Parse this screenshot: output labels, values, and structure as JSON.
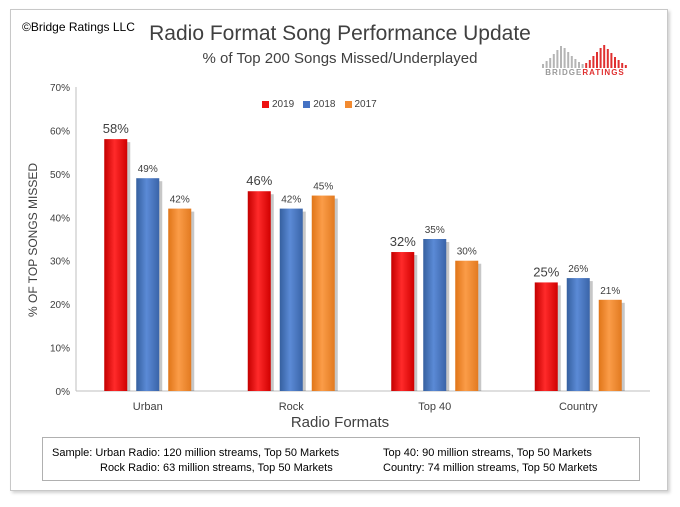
{
  "copyright": "©Bridge Ratings LLC",
  "logo": {
    "text_main": "BRIDGE",
    "text_accent": "RATINGS"
  },
  "footnote": {
    "line1_left": "Sample: Urban Radio: 120 million streams, Top 50 Markets",
    "line2_left": "Rock Radio: 63 million streams, Top 50 Markets",
    "line1_right": "Top 40: 90 million streams, Top 50 Markets",
    "line2_right": "Country: 74 million streams, Top 50 Markets"
  },
  "colors": {
    "2019": "#ee1111",
    "2018": "#4472c4",
    "2017": "#f28a30"
  },
  "chart_data": {
    "type": "bar",
    "title": "Radio Format Song Performance Update",
    "subtitle": "% of Top 200 Songs Missed/Underplayed",
    "xlabel": "Radio Formats",
    "ylabel": "% OF TOP SONGS MISSED",
    "categories": [
      "Urban",
      "Rock",
      "Top 40",
      "Country"
    ],
    "series": [
      {
        "name": "2019",
        "values": [
          58,
          46,
          32,
          25
        ]
      },
      {
        "name": "2018",
        "values": [
          49,
          42,
          35,
          26
        ]
      },
      {
        "name": "2017",
        "values": [
          42,
          45,
          30,
          21
        ]
      }
    ],
    "data_labels": [
      [
        "58%",
        "49%",
        "42%"
      ],
      [
        "46%",
        "42%",
        "45%"
      ],
      [
        "32%",
        "35%",
        "30%"
      ],
      [
        "25%",
        "26%",
        "21%"
      ]
    ],
    "yticks": [
      "0%",
      "10%",
      "20%",
      "30%",
      "40%",
      "50%",
      "60%",
      "70%"
    ],
    "ylim": [
      0,
      70
    ],
    "unit": "%",
    "legend_position": "top",
    "grid": false
  }
}
